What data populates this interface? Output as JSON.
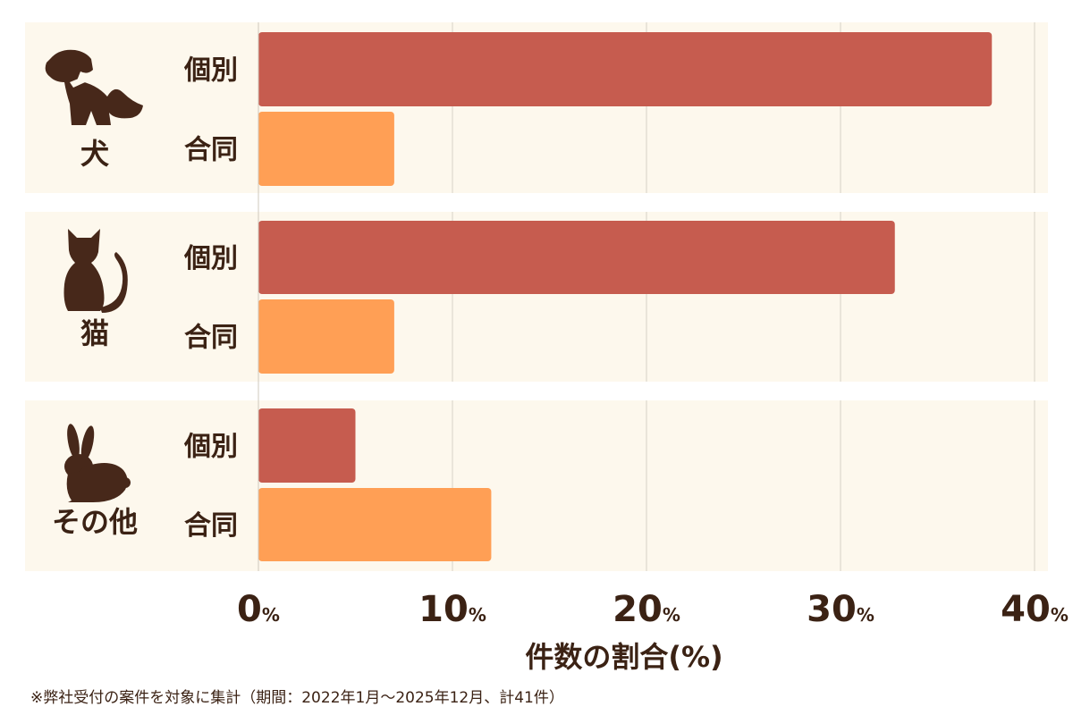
{
  "chart_data": {
    "type": "bar",
    "orientation": "horizontal",
    "groups": [
      {
        "name": "犬",
        "icon": "dog-icon",
        "bars": [
          {
            "label": "個別",
            "value": 37.8
          },
          {
            "label": "合同",
            "value": 7.0
          }
        ]
      },
      {
        "name": "猫",
        "icon": "cat-icon",
        "bars": [
          {
            "label": "個別",
            "value": 32.8
          },
          {
            "label": "合同",
            "value": 7.0
          }
        ]
      },
      {
        "name": "その他",
        "icon": "rabbit-icon",
        "bars": [
          {
            "label": "個別",
            "value": 5.0
          },
          {
            "label": "合同",
            "value": 12.0
          }
        ]
      }
    ],
    "xlim": [
      0,
      40
    ],
    "xticks": [
      0,
      10,
      20,
      30,
      40
    ],
    "tick_suffix": "%",
    "xlabel": "件数の割合(%)",
    "grid": true,
    "colors": {
      "個別": "#c65c4f",
      "合同": "#ff9f55",
      "panel": "#fdf8ed",
      "text": "#3b2214",
      "icon": "#47281a",
      "grid": "#d8d2c8"
    }
  },
  "footnote": "※弊社受付の案件を対象に集計（期間：2022年1月～2025年12月、計41件）"
}
